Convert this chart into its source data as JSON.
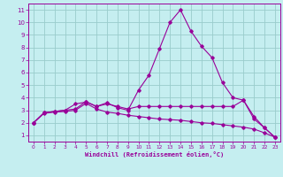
{
  "xlabel": "Windchill (Refroidissement éolien,°C)",
  "xlim": [
    -0.5,
    23.5
  ],
  "ylim": [
    0.5,
    11.5
  ],
  "xticks": [
    0,
    1,
    2,
    3,
    4,
    5,
    6,
    7,
    8,
    9,
    10,
    11,
    12,
    13,
    14,
    15,
    16,
    17,
    18,
    19,
    20,
    21,
    22,
    23
  ],
  "yticks": [
    1,
    2,
    3,
    4,
    5,
    6,
    7,
    8,
    9,
    10,
    11
  ],
  "background_color": "#c5eef0",
  "grid_color": "#99cccc",
  "line_color": "#990099",
  "curves": [
    {
      "x": [
        0,
        1,
        2,
        3,
        4,
        5,
        6,
        7,
        8,
        9,
        10,
        11,
        12,
        13,
        14,
        15,
        16,
        17,
        18,
        19,
        20,
        21,
        22,
        23
      ],
      "y": [
        2.0,
        2.8,
        2.9,
        3.0,
        3.1,
        3.7,
        3.3,
        3.6,
        3.2,
        3.0,
        4.6,
        5.8,
        7.9,
        10.0,
        11.0,
        9.3,
        8.1,
        7.2,
        5.2,
        4.0,
        3.8,
        2.5,
        1.6,
        0.85
      ]
    },
    {
      "x": [
        0,
        1,
        2,
        3,
        4,
        5,
        6,
        7,
        8,
        9,
        10,
        11,
        12,
        13,
        14,
        15,
        16,
        17,
        18,
        19,
        20,
        21,
        22,
        23
      ],
      "y": [
        2.0,
        2.8,
        2.9,
        3.0,
        3.5,
        3.65,
        3.3,
        3.5,
        3.3,
        3.1,
        3.3,
        3.3,
        3.3,
        3.3,
        3.3,
        3.3,
        3.3,
        3.3,
        3.3,
        3.3,
        3.8,
        2.3,
        1.6,
        0.85
      ]
    },
    {
      "x": [
        0,
        1,
        2,
        3,
        4,
        5,
        6,
        7,
        8,
        9,
        10,
        11,
        12,
        13,
        14,
        15,
        16,
        17,
        18,
        19,
        20,
        21,
        22,
        23
      ],
      "y": [
        2.0,
        2.75,
        2.85,
        2.9,
        3.0,
        3.55,
        3.1,
        2.85,
        2.75,
        2.6,
        2.5,
        2.4,
        2.3,
        2.25,
        2.2,
        2.1,
        2.0,
        1.95,
        1.85,
        1.75,
        1.65,
        1.5,
        1.2,
        0.85
      ]
    }
  ]
}
